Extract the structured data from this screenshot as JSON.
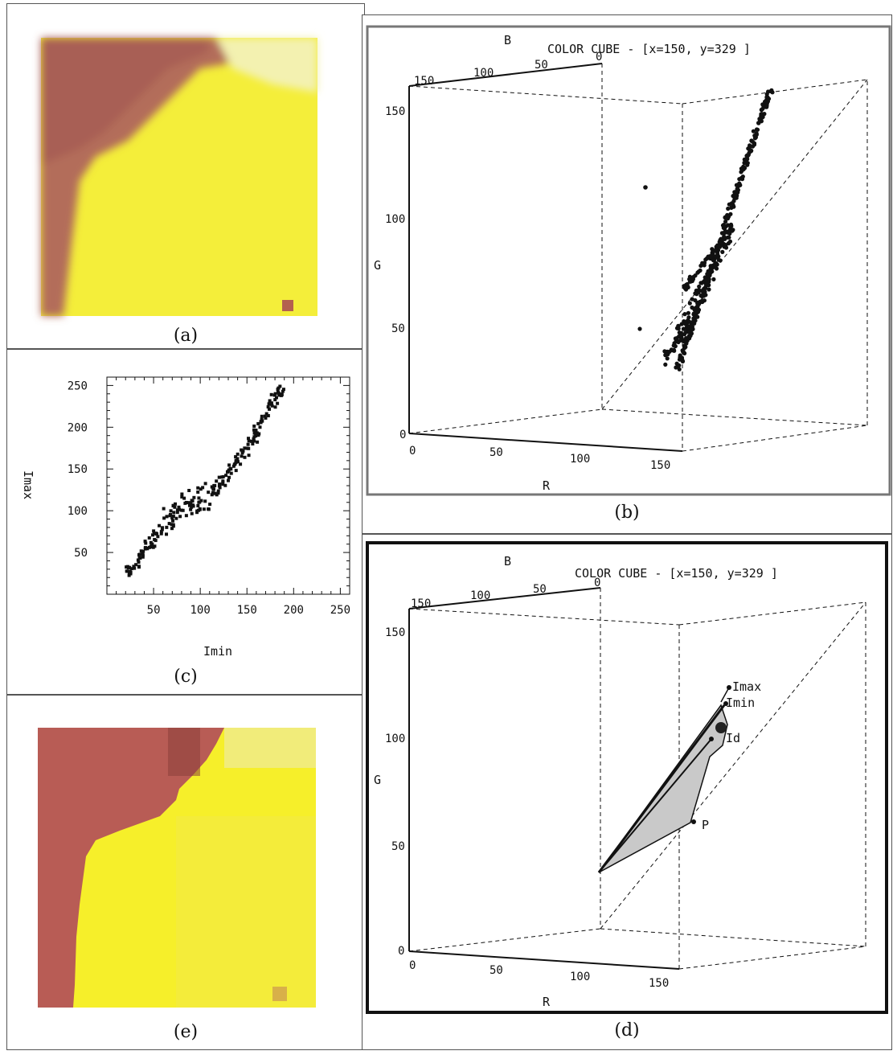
{
  "captions": {
    "a": "(a)",
    "b": "(b)",
    "c": "(c)",
    "d": "(d)",
    "e": "(e)"
  },
  "colors": {
    "reddish": "#b9685e",
    "yellow": "#f6ef3c",
    "pale_yellow": "#eef07c",
    "hull_fill": "#c9c9c9",
    "point": "#111111"
  },
  "cube_b": {
    "title": "COLOR CUBE - [x=150, y=329 ]",
    "axis_labels": {
      "r": "R",
      "g": "G",
      "b": "B"
    },
    "r_ticks": [
      "0",
      "50",
      "100",
      "150"
    ],
    "g_ticks": [
      "0",
      "50",
      "100",
      "150"
    ],
    "b_ticks": [
      "150",
      "100",
      "50",
      "0"
    ]
  },
  "cube_d": {
    "title": "COLOR CUBE - [x=150, y=329 ]",
    "axis_labels": {
      "r": "R",
      "g": "G",
      "b": "B"
    },
    "r_ticks": [
      "0",
      "50",
      "100",
      "150"
    ],
    "g_ticks": [
      "0",
      "50",
      "100",
      "150"
    ],
    "b_ticks": [
      "150",
      "100",
      "50",
      "0"
    ],
    "point_labels": {
      "imax": "Imax",
      "imin": "Imin",
      "id": "Id",
      "p": "P"
    }
  },
  "chart_data": [
    {
      "type": "scatter",
      "panel": "(c)",
      "xlabel": "Imin",
      "ylabel": "Imax",
      "xlim": [
        0,
        260
      ],
      "ylim": [
        0,
        260
      ],
      "x_ticks": [
        "50",
        "100",
        "150",
        "200",
        "250"
      ],
      "y_ticks": [
        "50",
        "100",
        "150",
        "200",
        "250"
      ],
      "trend_points": [
        [
          20,
          25
        ],
        [
          30,
          35
        ],
        [
          40,
          50
        ],
        [
          50,
          65
        ],
        [
          60,
          80
        ],
        [
          70,
          95
        ],
        [
          80,
          105
        ],
        [
          90,
          110
        ],
        [
          100,
          115
        ],
        [
          110,
          120
        ],
        [
          120,
          130
        ],
        [
          130,
          145
        ],
        [
          140,
          160
        ],
        [
          150,
          175
        ],
        [
          160,
          195
        ],
        [
          170,
          215
        ],
        [
          180,
          235
        ],
        [
          190,
          245
        ]
      ],
      "scatter_spread": 14
    }
  ]
}
